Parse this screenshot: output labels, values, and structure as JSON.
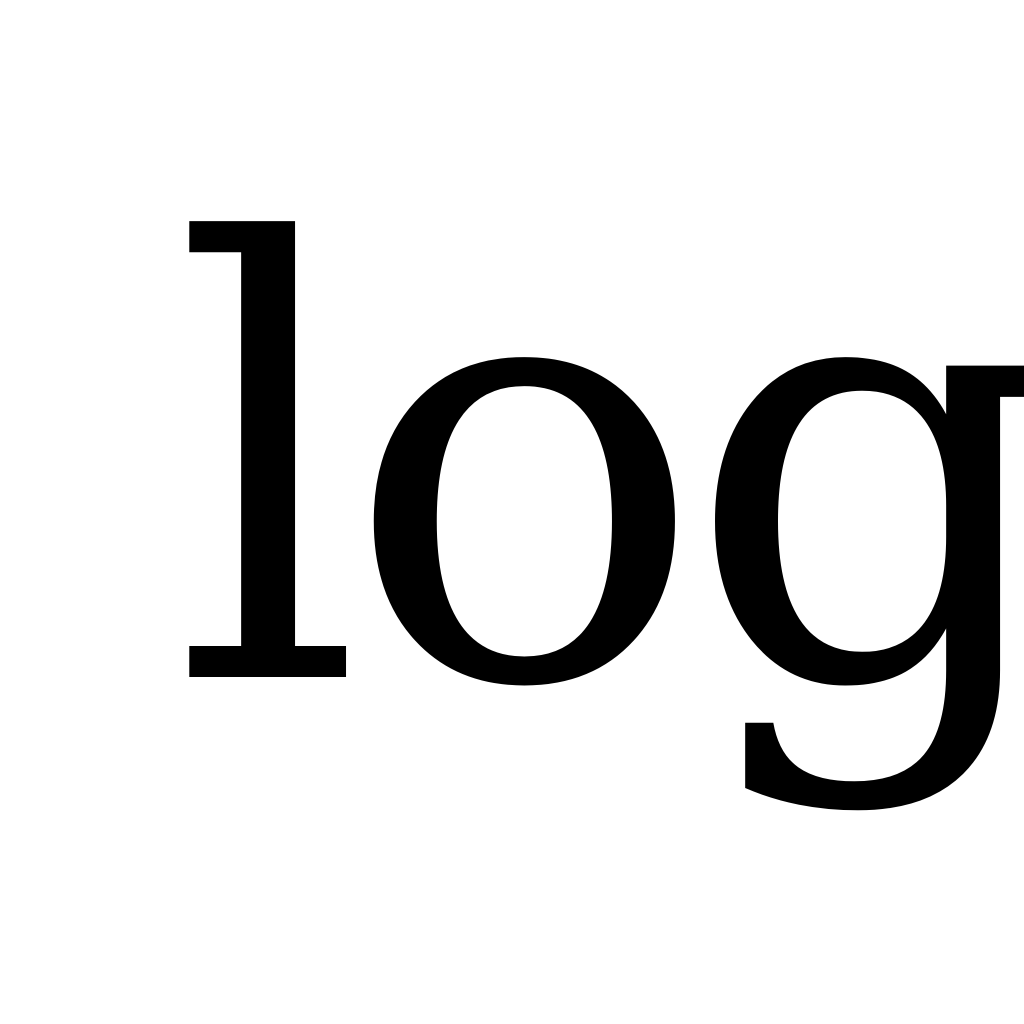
{
  "text": "log",
  "colors": {
    "text": "#000000",
    "background": "#ffffff"
  }
}
